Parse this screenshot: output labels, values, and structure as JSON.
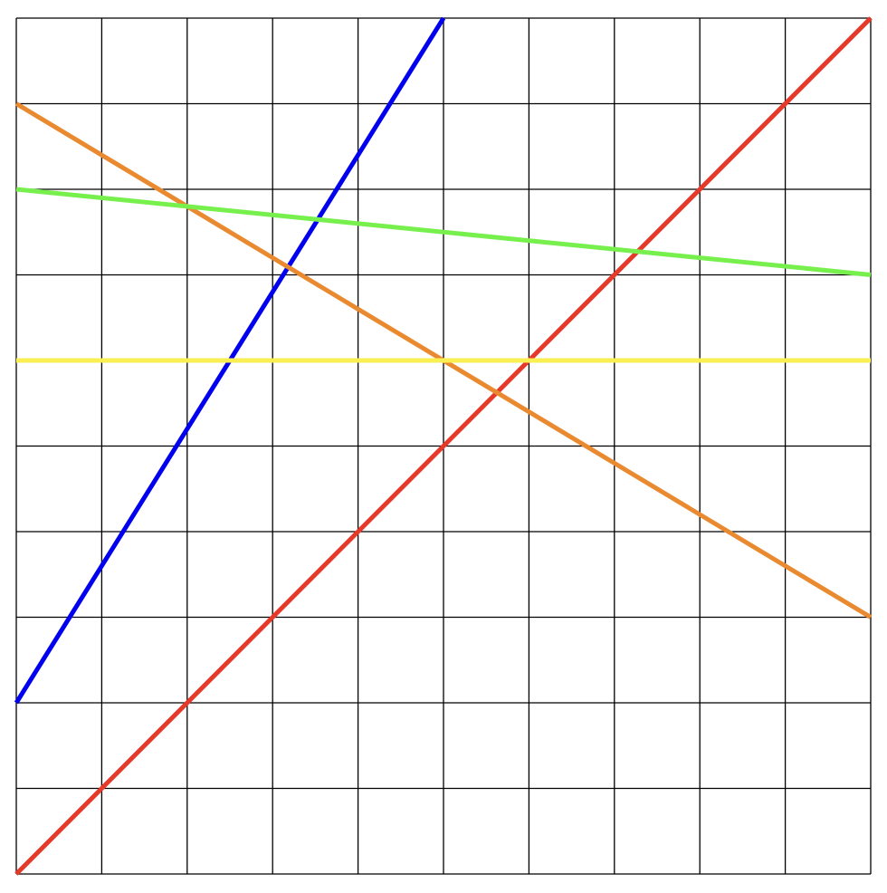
{
  "chart_data": {
    "type": "line",
    "title": "",
    "xlabel": "",
    "ylabel": "",
    "xlim": [
      0,
      10
    ],
    "ylim": [
      0,
      10
    ],
    "grid": true,
    "grid_step": 1,
    "tick_labels_shown": false,
    "series": [
      {
        "color": "#0000ee",
        "x": [
          0,
          5
        ],
        "y": [
          2,
          10
        ]
      },
      {
        "color": "#e5392a",
        "x": [
          0,
          10
        ],
        "y": [
          0,
          10
        ]
      },
      {
        "color": "#ea8a30",
        "x": [
          0,
          10
        ],
        "y": [
          9,
          3
        ]
      },
      {
        "color": "#77f04d",
        "x": [
          0,
          10
        ],
        "y": [
          8,
          7
        ]
      },
      {
        "color": "#faef52",
        "x": [
          0,
          10
        ],
        "y": [
          6,
          6
        ]
      }
    ]
  }
}
